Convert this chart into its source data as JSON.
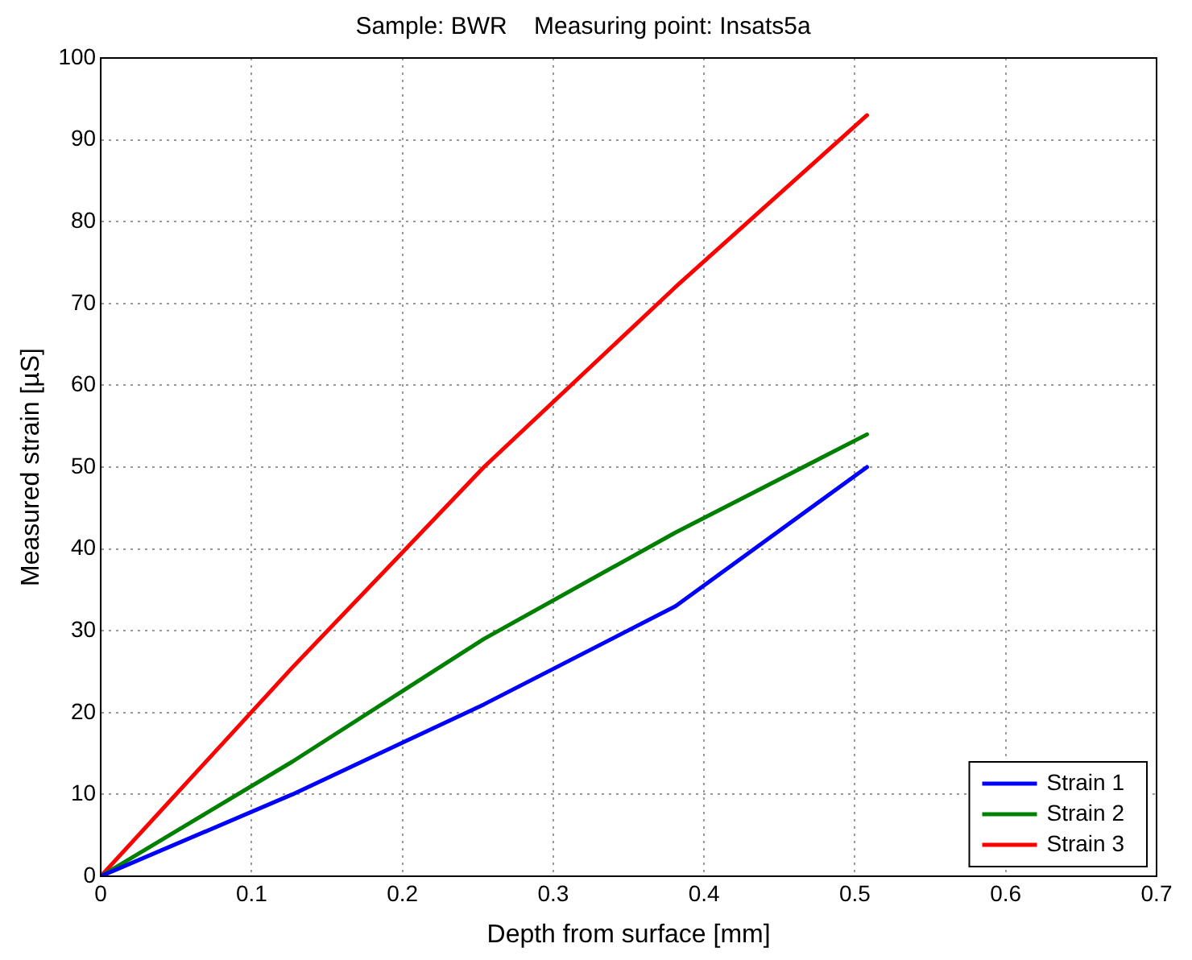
{
  "chart_data": {
    "type": "line",
    "title": "Sample: BWR    Measuring point: Insats5a",
    "xlabel": "Depth from surface [mm]",
    "ylabel": "Measured strain [µS]",
    "x": [
      0,
      0.127,
      0.254,
      0.381,
      0.508
    ],
    "series": [
      {
        "name": "Strain 1",
        "color": "#0000ff",
        "values": [
          0,
          10,
          21,
          33,
          50
        ]
      },
      {
        "name": "Strain 2",
        "color": "#008000",
        "values": [
          0,
          14,
          29,
          42,
          54
        ]
      },
      {
        "name": "Strain 3",
        "color": "#ff0000",
        "values": [
          0,
          25.5,
          50,
          72,
          93
        ]
      }
    ],
    "xlim": [
      0,
      0.7
    ],
    "xticks": [
      0,
      0.1,
      0.2,
      0.3,
      0.4,
      0.5,
      0.6,
      0.7
    ],
    "ylim": [
      0,
      100
    ],
    "yticks": [
      0,
      10,
      20,
      30,
      40,
      50,
      60,
      70,
      80,
      90,
      100
    ],
    "grid": true,
    "legend": "bottom right",
    "marker": "none",
    "line_style": "solid"
  }
}
